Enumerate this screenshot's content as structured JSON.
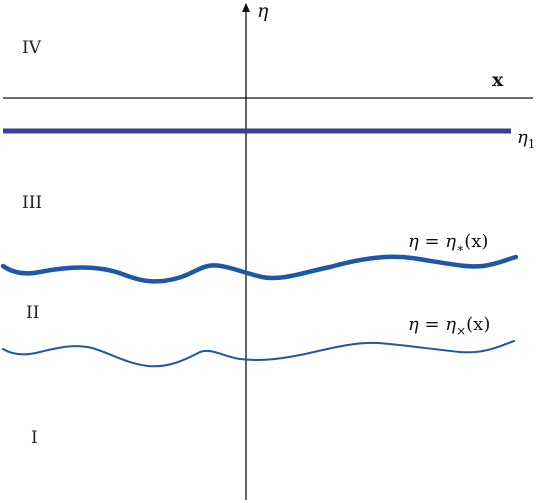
{
  "axes": {
    "eta_symbol": "η",
    "x_symbol": "x"
  },
  "line_eta1": {
    "symbol": "η",
    "subscript": "1",
    "color": "#3d3a99"
  },
  "curve_star": {
    "lhs": "η = η",
    "subscript": "∗",
    "arg": "(x)",
    "color": "#1f56a8"
  },
  "curve_cross": {
    "lhs": "η = η",
    "subscript": "×",
    "arg": "(x)",
    "color": "#1f56a8"
  },
  "regions": {
    "iv": "IV",
    "iii": "III",
    "ii": "II",
    "i": "I"
  }
}
